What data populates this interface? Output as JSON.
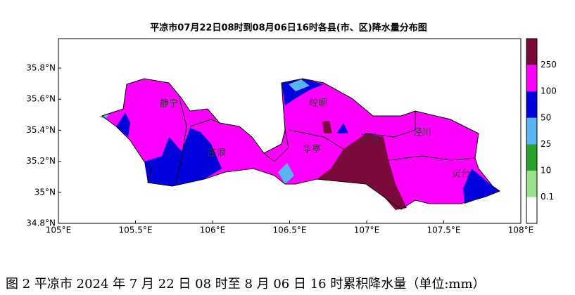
{
  "title": "平凉市07月22日08时到08月06日16时各县(市、区)降水量分布图",
  "x_axis": {
    "ticks": [
      "105°E",
      "105.5°E",
      "106°E",
      "106.5°E",
      "107°E",
      "107.5°E",
      "108°E"
    ]
  },
  "y_axis": {
    "ticks": [
      "34.8°N",
      "35°N",
      "35.2°N",
      "35.4°N",
      "35.6°N",
      "35.8°N"
    ]
  },
  "colorbar": {
    "labels": [
      "0.1",
      "10",
      "25",
      "50",
      "100",
      "250"
    ]
  },
  "counties": [
    "静宁",
    "庄浪",
    "华亭",
    "崆峒",
    "崇信",
    "泾川",
    "灵台"
  ],
  "caption": "图 2  平凉市 2024 年 7 月 22 日 08 时至 8 月 06 日 16 时累积降水量（单位:mm）"
}
